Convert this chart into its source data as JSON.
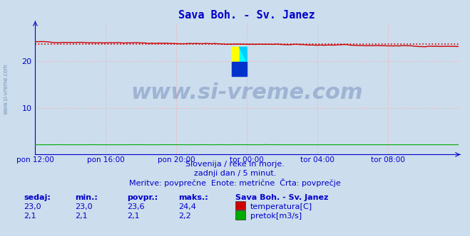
{
  "title": "Sava Boh. - Sv. Janez",
  "bg_color": "#ccdded",
  "plot_bg_color": "#ccdded",
  "fig_bg_color": "#ccdded",
  "grid_color": "#ffaaaa",
  "grid_style": ":",
  "ylim": [
    0,
    28.0
  ],
  "yticks": [
    10,
    20
  ],
  "xlim": [
    0,
    288
  ],
  "xtick_labels": [
    "pon 12:00",
    "pon 16:00",
    "pon 20:00",
    "tor 00:00",
    "tor 04:00",
    "tor 08:00"
  ],
  "xtick_positions": [
    0,
    48,
    96,
    144,
    192,
    240
  ],
  "temp_color": "#cc0000",
  "temp_avg_color": "#cc0000",
  "temp_avg_style": ":",
  "flow_color": "#00aa00",
  "temp_value": 23.0,
  "temp_min": 23.0,
  "temp_avg": 23.6,
  "temp_max": 24.4,
  "flow_value": 2.1,
  "flow_min": 2.1,
  "flow_avg": 2.1,
  "flow_max": 2.2,
  "temp_avg_line": 23.6,
  "flow_avg_line": 2.1,
  "station_name": "Sava Boh. - Sv. Janez",
  "subtitle1": "Slovenija / reke in morje.",
  "subtitle2": "zadnji dan / 5 minut.",
  "subtitle3": "Meritve: povprečne  Enote: metrične  Črta: povprečje",
  "label_sedaj": "sedaj:",
  "label_min": "min.:",
  "label_povpr": "povpr.:",
  "label_maks": "maks.:",
  "label_temp": "temperatura[C]",
  "label_flow": "pretok[m3/s]",
  "axis_color": "#0000cc",
  "title_color": "#0000cc",
  "text_color": "#0000cc",
  "watermark": "www.si-vreme.com",
  "left_watermark": "www.si-vreme.com"
}
